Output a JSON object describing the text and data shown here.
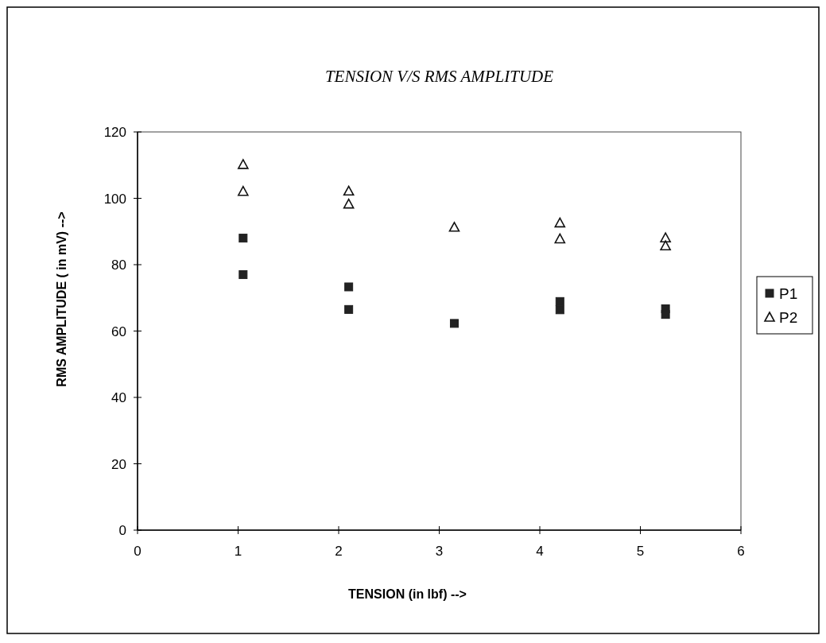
{
  "chart_data": {
    "type": "scatter",
    "title": "TENSION V/S RMS AMPLITUDE",
    "xlabel": "TENSION (in lbf) -->",
    "ylabel": "RMS AMPLITUDE ( in mV) -->",
    "series": [
      {
        "name": "P1",
        "color": "#222222",
        "marker": "square",
        "x": [
          1.05,
          1.05,
          2.1,
          2.1,
          3.15,
          4.2,
          4.2,
          5.25,
          5.25
        ],
        "values": [
          88,
          77,
          73.3,
          66.5,
          62.3,
          68.9,
          66.4,
          66.7,
          65
        ]
      },
      {
        "name": "P2",
        "color": "#111111",
        "marker": "triangle",
        "x": [
          1.05,
          1.05,
          2.1,
          2.1,
          3.15,
          4.2,
          4.2,
          5.25,
          5.25
        ],
        "values": [
          110.2,
          102.1,
          102.2,
          98.3,
          91.3,
          92.6,
          87.8,
          88.1,
          85.7
        ]
      }
    ],
    "xlim": [
      0,
      6
    ],
    "xticks": [
      0,
      1,
      2,
      3,
      4,
      5,
      6
    ],
    "ylim": [
      0,
      120
    ],
    "yticks": [
      0,
      20,
      40,
      60,
      80,
      100,
      120
    ],
    "grid": false,
    "legend": "right"
  }
}
